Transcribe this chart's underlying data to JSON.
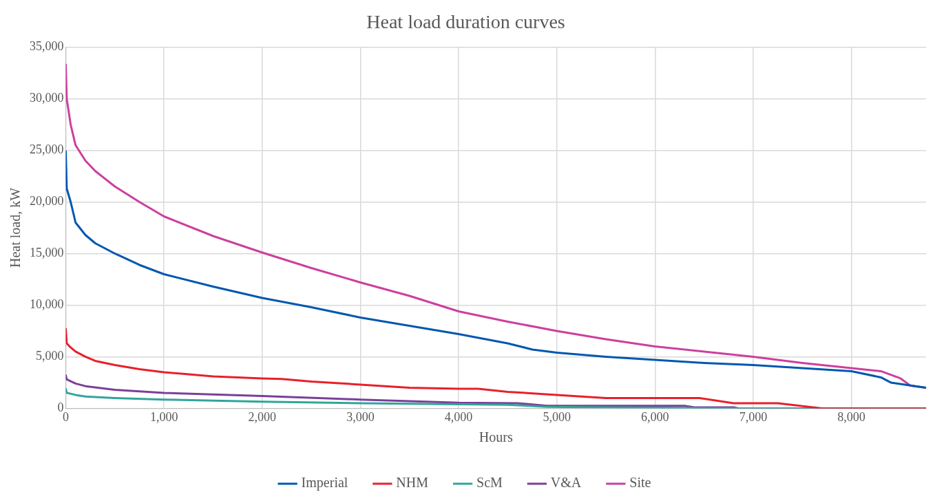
{
  "chart_data": {
    "type": "line",
    "title": "Heat load duration curves",
    "xlabel": "Hours",
    "ylabel": "Heat load, kW",
    "xlim": [
      0,
      8760
    ],
    "xticks": [
      0,
      {
        "value": 1000,
        "label": "1,000"
      },
      {
        "value": 2000,
        "label": "2,000"
      },
      {
        "value": 3000,
        "label": "3,000"
      },
      {
        "value": 4000,
        "label": "4,000"
      },
      {
        "value": 5000,
        "label": "5,000"
      },
      {
        "value": 6000,
        "label": "6,000"
      },
      {
        "value": 7000,
        "label": "7,000"
      },
      {
        "value": 8000,
        "label": "8,000"
      }
    ],
    "ylim": [
      0,
      35000
    ],
    "yticks": [
      0,
      {
        "value": 5000,
        "label": "5,000"
      },
      {
        "value": 10000,
        "label": "10,000"
      },
      {
        "value": 15000,
        "label": "15,000"
      },
      {
        "value": 20000,
        "label": "20,000"
      },
      {
        "value": 25000,
        "label": "25,000"
      },
      {
        "value": 30000,
        "label": "30,000"
      },
      {
        "value": 35000,
        "label": "35,000"
      }
    ],
    "grid": true,
    "legend": "bottom",
    "marker": "none",
    "line_style": "solid",
    "series": [
      {
        "name": "Imperial",
        "color": "#0057b0",
        "x": [
          0,
          10,
          50,
          100,
          200,
          300,
          500,
          750,
          1000,
          1500,
          2000,
          2500,
          3000,
          3500,
          4000,
          4500,
          4750,
          5000,
          5500,
          6000,
          6500,
          7000,
          7500,
          8000,
          8300,
          8400,
          8760
        ],
        "values": [
          24900,
          21300,
          20000,
          18000,
          16800,
          16000,
          15000,
          13900,
          13000,
          11800,
          10700,
          9800,
          8800,
          8000,
          7200,
          6300,
          5700,
          5400,
          5000,
          4700,
          4400,
          4200,
          3900,
          3600,
          3000,
          2500,
          2000
        ]
      },
      {
        "name": "NHM",
        "color": "#e8202a",
        "x": [
          0,
          10,
          50,
          100,
          200,
          300,
          500,
          750,
          1000,
          1500,
          2000,
          2200,
          2500,
          3000,
          3500,
          4000,
          4200,
          4500,
          5000,
          5500,
          6000,
          6450,
          6800,
          7250,
          7700,
          8760
        ],
        "values": [
          7700,
          6300,
          5900,
          5500,
          5000,
          4600,
          4200,
          3800,
          3500,
          3100,
          2900,
          2850,
          2600,
          2300,
          2000,
          1900,
          1900,
          1600,
          1300,
          1000,
          1000,
          1000,
          500,
          500,
          0,
          0
        ]
      },
      {
        "name": "ScM",
        "color": "#31a59a",
        "x": [
          0,
          10,
          100,
          200,
          500,
          1000,
          2000,
          3000,
          4000,
          4500,
          4900,
          5500,
          6300,
          6800,
          8760
        ],
        "values": [
          1900,
          1500,
          1300,
          1150,
          1000,
          850,
          650,
          500,
          400,
          350,
          150,
          100,
          50,
          0,
          0
        ]
      },
      {
        "name": "V&A",
        "color": "#7a3f9a",
        "x": [
          0,
          10,
          100,
          200,
          500,
          1000,
          2000,
          3000,
          4000,
          4600,
          4900,
          6300,
          6400,
          6800,
          6850,
          8760
        ],
        "values": [
          3200,
          2800,
          2400,
          2150,
          1800,
          1500,
          1200,
          850,
          550,
          500,
          250,
          250,
          100,
          100,
          0,
          0
        ]
      },
      {
        "name": "Site",
        "color": "#cc3f9e",
        "x": [
          0,
          10,
          50,
          100,
          200,
          300,
          500,
          750,
          1000,
          1500,
          2000,
          2500,
          3000,
          3500,
          4000,
          4500,
          5000,
          5500,
          6000,
          6500,
          7000,
          7500,
          8000,
          8300,
          8500,
          8600,
          8760
        ],
        "values": [
          33300,
          30000,
          27500,
          25500,
          24000,
          23000,
          21500,
          20000,
          18600,
          16700,
          15100,
          13600,
          12200,
          10900,
          9400,
          8400,
          7500,
          6700,
          6000,
          5500,
          5000,
          4400,
          3900,
          3600,
          2900,
          2200,
          2000
        ]
      }
    ]
  }
}
